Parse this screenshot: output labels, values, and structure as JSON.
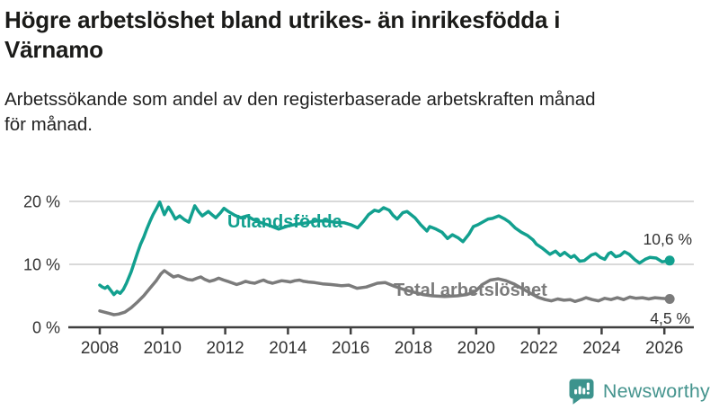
{
  "title": {
    "line1": "Högre arbetslöshet bland utrikes- än inrikesfödda i",
    "line2": "Värnamo"
  },
  "subtitle": {
    "line1": "Arbetssökande som andel av den registerbaserade arbetskraften månad",
    "line2": "för månad."
  },
  "branding": {
    "logo_text": "Newsworthy",
    "logo_color": "#45948e",
    "icon_color": "#3c938d",
    "icon": "speech-bubble-bar-chart-icon"
  },
  "colors": {
    "accent_teal": "#12a08f",
    "series_gray": "#7b7b7b",
    "axis": "#3f3f3f",
    "grid": "#d9d9d9",
    "text": "#333333"
  },
  "chart_data": {
    "type": "line",
    "unit": "%",
    "ylim": [
      0,
      20
    ],
    "xlim": [
      2008,
      2026.5
    ],
    "grid": "horizontal",
    "legend_position": "inline-labels",
    "y_ticks": [
      {
        "label": "20 %",
        "value": 20
      },
      {
        "label": "10 %",
        "value": 10
      },
      {
        "label": "0 %",
        "value": 0
      }
    ],
    "x_ticks": [
      {
        "label": "2008",
        "value": 2008
      },
      {
        "label": "2010",
        "value": 2010
      },
      {
        "label": "2012",
        "value": 2012
      },
      {
        "label": "2014",
        "value": 2014
      },
      {
        "label": "2016",
        "value": 2016
      },
      {
        "label": "2018",
        "value": 2018
      },
      {
        "label": "2020",
        "value": 2020
      },
      {
        "label": "2022",
        "value": 2022
      },
      {
        "label": "2024",
        "value": 2024
      },
      {
        "label": "2026",
        "value": 2026
      }
    ],
    "series": [
      {
        "name": "Utlandsfödda",
        "color": "#12a08f",
        "end_label": "10,6 %",
        "end_value": 10.6,
        "points": [
          [
            2008.0,
            6.7
          ],
          [
            2008.08,
            6.4
          ],
          [
            2008.17,
            6.2
          ],
          [
            2008.25,
            6.5
          ],
          [
            2008.33,
            6.0
          ],
          [
            2008.45,
            5.2
          ],
          [
            2008.55,
            5.7
          ],
          [
            2008.65,
            5.4
          ],
          [
            2008.75,
            6.0
          ],
          [
            2008.85,
            7.0
          ],
          [
            2009.0,
            8.8
          ],
          [
            2009.1,
            10.3
          ],
          [
            2009.2,
            11.8
          ],
          [
            2009.3,
            13.2
          ],
          [
            2009.4,
            14.3
          ],
          [
            2009.5,
            15.6
          ],
          [
            2009.6,
            16.8
          ],
          [
            2009.7,
            17.9
          ],
          [
            2009.8,
            18.8
          ],
          [
            2009.91,
            19.9
          ],
          [
            2010.0,
            18.7
          ],
          [
            2010.06,
            17.9
          ],
          [
            2010.19,
            19.1
          ],
          [
            2010.3,
            18.2
          ],
          [
            2010.41,
            17.2
          ],
          [
            2010.55,
            17.7
          ],
          [
            2010.7,
            17.1
          ],
          [
            2010.84,
            16.7
          ],
          [
            2011.03,
            19.3
          ],
          [
            2011.15,
            18.4
          ],
          [
            2011.27,
            17.7
          ],
          [
            2011.46,
            18.4
          ],
          [
            2011.6,
            17.8
          ],
          [
            2011.7,
            17.4
          ],
          [
            2011.85,
            18.2
          ],
          [
            2011.96,
            18.9
          ],
          [
            2012.1,
            18.4
          ],
          [
            2012.3,
            17.8
          ],
          [
            2012.5,
            17.4
          ],
          [
            2012.7,
            17.7
          ],
          [
            2012.9,
            17.1
          ],
          [
            2013.1,
            16.7
          ],
          [
            2013.4,
            16.2
          ],
          [
            2013.7,
            15.6
          ],
          [
            2014.0,
            16.1
          ],
          [
            2014.3,
            16.4
          ],
          [
            2014.6,
            16.6
          ],
          [
            2014.9,
            16.9
          ],
          [
            2015.2,
            16.9
          ],
          [
            2015.5,
            16.7
          ],
          [
            2015.8,
            16.6
          ],
          [
            2016.0,
            16.3
          ],
          [
            2016.22,
            15.8
          ],
          [
            2016.4,
            16.8
          ],
          [
            2016.57,
            17.9
          ],
          [
            2016.76,
            18.6
          ],
          [
            2016.9,
            18.4
          ],
          [
            2017.05,
            19.0
          ],
          [
            2017.23,
            18.6
          ],
          [
            2017.35,
            17.8
          ],
          [
            2017.48,
            17.2
          ],
          [
            2017.66,
            18.2
          ],
          [
            2017.8,
            18.4
          ],
          [
            2018.05,
            17.4
          ],
          [
            2018.23,
            16.3
          ],
          [
            2018.43,
            15.3
          ],
          [
            2018.52,
            16.0
          ],
          [
            2018.72,
            15.6
          ],
          [
            2018.91,
            15.1
          ],
          [
            2019.09,
            14.1
          ],
          [
            2019.24,
            14.7
          ],
          [
            2019.43,
            14.2
          ],
          [
            2019.58,
            13.6
          ],
          [
            2019.77,
            14.8
          ],
          [
            2019.91,
            16.0
          ],
          [
            2020.06,
            16.3
          ],
          [
            2020.2,
            16.7
          ],
          [
            2020.38,
            17.2
          ],
          [
            2020.52,
            17.3
          ],
          [
            2020.72,
            17.7
          ],
          [
            2020.91,
            17.2
          ],
          [
            2021.06,
            16.7
          ],
          [
            2021.24,
            15.8
          ],
          [
            2021.44,
            15.1
          ],
          [
            2021.63,
            14.6
          ],
          [
            2021.81,
            13.9
          ],
          [
            2021.92,
            13.2
          ],
          [
            2022.1,
            12.6
          ],
          [
            2022.35,
            11.6
          ],
          [
            2022.53,
            12.1
          ],
          [
            2022.68,
            11.4
          ],
          [
            2022.82,
            11.9
          ],
          [
            2023.02,
            11.1
          ],
          [
            2023.13,
            11.4
          ],
          [
            2023.3,
            10.5
          ],
          [
            2023.45,
            10.6
          ],
          [
            2023.68,
            11.5
          ],
          [
            2023.81,
            11.7
          ],
          [
            2023.96,
            11.1
          ],
          [
            2024.1,
            10.8
          ],
          [
            2024.22,
            11.7
          ],
          [
            2024.3,
            11.9
          ],
          [
            2024.45,
            11.2
          ],
          [
            2024.59,
            11.4
          ],
          [
            2024.73,
            12.0
          ],
          [
            2024.88,
            11.6
          ],
          [
            2025.07,
            10.7
          ],
          [
            2025.21,
            10.2
          ],
          [
            2025.39,
            10.8
          ],
          [
            2025.54,
            11.1
          ],
          [
            2025.74,
            11.0
          ],
          [
            2025.93,
            10.4
          ],
          [
            2026.17,
            10.6
          ]
        ]
      },
      {
        "name": "Total arbetslöshet",
        "color": "#7b7b7b",
        "end_label": "4,5 %",
        "end_value": 4.5,
        "points": [
          [
            2008.0,
            2.6
          ],
          [
            2008.15,
            2.4
          ],
          [
            2008.3,
            2.2
          ],
          [
            2008.45,
            2.0
          ],
          [
            2008.6,
            2.1
          ],
          [
            2008.8,
            2.4
          ],
          [
            2009.0,
            3.1
          ],
          [
            2009.2,
            4.0
          ],
          [
            2009.4,
            5.0
          ],
          [
            2009.6,
            6.2
          ],
          [
            2009.8,
            7.4
          ],
          [
            2009.95,
            8.5
          ],
          [
            2010.06,
            9.0
          ],
          [
            2010.2,
            8.5
          ],
          [
            2010.35,
            8.0
          ],
          [
            2010.5,
            8.2
          ],
          [
            2010.65,
            7.9
          ],
          [
            2010.8,
            7.6
          ],
          [
            2010.95,
            7.5
          ],
          [
            2011.1,
            7.8
          ],
          [
            2011.22,
            8.0
          ],
          [
            2011.35,
            7.6
          ],
          [
            2011.5,
            7.3
          ],
          [
            2011.65,
            7.5
          ],
          [
            2011.79,
            7.8
          ],
          [
            2011.95,
            7.5
          ],
          [
            2012.08,
            7.3
          ],
          [
            2012.36,
            6.8
          ],
          [
            2012.5,
            7.0
          ],
          [
            2012.65,
            7.3
          ],
          [
            2012.8,
            7.1
          ],
          [
            2012.94,
            7.0
          ],
          [
            2013.1,
            7.3
          ],
          [
            2013.22,
            7.5
          ],
          [
            2013.35,
            7.2
          ],
          [
            2013.51,
            7.0
          ],
          [
            2013.65,
            7.2
          ],
          [
            2013.8,
            7.4
          ],
          [
            2013.95,
            7.3
          ],
          [
            2014.08,
            7.2
          ],
          [
            2014.22,
            7.4
          ],
          [
            2014.37,
            7.5
          ],
          [
            2014.5,
            7.3
          ],
          [
            2014.65,
            7.2
          ],
          [
            2014.85,
            7.1
          ],
          [
            2015.1,
            6.9
          ],
          [
            2015.35,
            6.8
          ],
          [
            2015.55,
            6.7
          ],
          [
            2015.71,
            6.6
          ],
          [
            2015.94,
            6.7
          ],
          [
            2016.2,
            6.2
          ],
          [
            2016.5,
            6.4
          ],
          [
            2016.85,
            7.0
          ],
          [
            2017.1,
            7.1
          ],
          [
            2017.4,
            6.5
          ],
          [
            2017.7,
            6.0
          ],
          [
            2018.0,
            5.6
          ],
          [
            2018.3,
            5.2
          ],
          [
            2018.6,
            5.0
          ],
          [
            2019.0,
            4.9
          ],
          [
            2019.4,
            5.0
          ],
          [
            2019.7,
            5.2
          ],
          [
            2019.95,
            5.6
          ],
          [
            2020.2,
            6.8
          ],
          [
            2020.45,
            7.5
          ],
          [
            2020.7,
            7.7
          ],
          [
            2020.95,
            7.4
          ],
          [
            2021.2,
            6.9
          ],
          [
            2021.45,
            6.2
          ],
          [
            2021.7,
            5.5
          ],
          [
            2021.95,
            4.8
          ],
          [
            2022.2,
            4.4
          ],
          [
            2022.4,
            4.2
          ],
          [
            2022.6,
            4.5
          ],
          [
            2022.8,
            4.3
          ],
          [
            2023.0,
            4.4
          ],
          [
            2023.15,
            4.1
          ],
          [
            2023.35,
            4.4
          ],
          [
            2023.5,
            4.7
          ],
          [
            2023.7,
            4.4
          ],
          [
            2023.9,
            4.2
          ],
          [
            2024.1,
            4.6
          ],
          [
            2024.3,
            4.4
          ],
          [
            2024.5,
            4.7
          ],
          [
            2024.7,
            4.4
          ],
          [
            2024.9,
            4.8
          ],
          [
            2025.1,
            4.6
          ],
          [
            2025.3,
            4.7
          ],
          [
            2025.5,
            4.5
          ],
          [
            2025.7,
            4.7
          ],
          [
            2025.9,
            4.6
          ],
          [
            2026.17,
            4.5
          ]
        ]
      }
    ]
  }
}
